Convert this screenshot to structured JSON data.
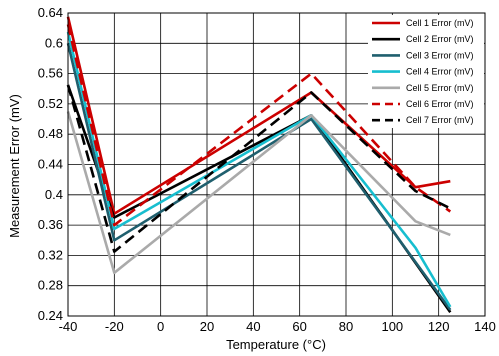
{
  "chart_data": {
    "type": "line",
    "title": "",
    "xlabel": "Temperature (°C)",
    "ylabel": "Measurement Error (mV)",
    "xlim": [
      -40,
      140
    ],
    "ylim": [
      0.24,
      0.64
    ],
    "x_ticks": [
      "-40",
      "-20",
      "0",
      "20",
      "40",
      "60",
      "80",
      "100",
      "120",
      "140"
    ],
    "y_ticks": [
      "0.24",
      "0.28",
      "0.32",
      "0.36",
      "0.4",
      "0.44",
      "0.48",
      "0.52",
      "0.56",
      "0.6",
      "0.64"
    ],
    "x_tick_values": [
      -40,
      -20,
      0,
      20,
      40,
      60,
      80,
      100,
      120,
      140
    ],
    "y_tick_values": [
      0.24,
      0.28,
      0.32,
      0.36,
      0.4,
      0.44,
      0.48,
      0.52,
      0.56,
      0.6,
      0.64
    ],
    "grid": true,
    "legend_position": "top-right",
    "series": [
      {
        "name": "Cell 1 Error (mV)",
        "color": "#cc0000",
        "dash": false,
        "x": [
          -40,
          -20,
          65,
          110,
          125
        ],
        "y": [
          0.635,
          0.375,
          0.535,
          0.41,
          0.418
        ]
      },
      {
        "name": "Cell 2 Error (mV)",
        "color": "#000000",
        "dash": false,
        "x": [
          -40,
          -20,
          65,
          125
        ],
        "y": [
          0.545,
          0.37,
          0.505,
          0.245
        ]
      },
      {
        "name": "Cell 3 Error (mV)",
        "color": "#1f5f6e",
        "dash": false,
        "x": [
          -40,
          -20,
          65,
          125
        ],
        "y": [
          0.6,
          0.34,
          0.5,
          0.248
        ]
      },
      {
        "name": "Cell 4 Error (mV)",
        "color": "#17becf",
        "dash": false,
        "x": [
          -40,
          -20,
          65,
          110,
          125
        ],
        "y": [
          0.615,
          0.355,
          0.505,
          0.33,
          0.252
        ]
      },
      {
        "name": "Cell 5 Error (mV)",
        "color": "#aaaaaa",
        "dash": false,
        "x": [
          -40,
          -20,
          65,
          110,
          125
        ],
        "y": [
          0.51,
          0.297,
          0.505,
          0.365,
          0.347
        ]
      },
      {
        "name": "Cell 6 Error (mV)",
        "color": "#cc0000",
        "dash": true,
        "x": [
          -40,
          -20,
          65,
          110,
          125
        ],
        "y": [
          0.625,
          0.36,
          0.56,
          0.41,
          0.378
        ]
      },
      {
        "name": "Cell 7 Error (mV)",
        "color": "#000000",
        "dash": true,
        "x": [
          -40,
          -20,
          65,
          110,
          125
        ],
        "y": [
          0.545,
          0.325,
          0.535,
          0.405,
          0.382
        ]
      }
    ]
  }
}
